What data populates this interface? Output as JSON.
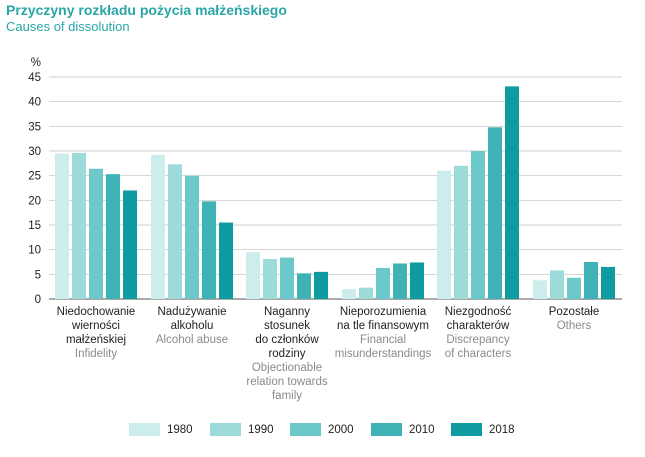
{
  "title": "Przyczyny rozkładu pożycia małżeńskiego",
  "subtitle": "Causes of dissolution",
  "colors": {
    "title": "#2aa6a8",
    "grid": "#bfbfbf",
    "axis": "#555555",
    "series": [
      "#cdecec",
      "#9ddbdb",
      "#6cc9ca",
      "#3eb2b4",
      "#109ba0"
    ]
  },
  "chart_data": {
    "type": "bar",
    "y_unit_label": "%",
    "ylim": [
      0,
      45
    ],
    "yticks": [
      0,
      5,
      10,
      15,
      20,
      25,
      30,
      35,
      40,
      45
    ],
    "grid": true,
    "legend_position": "bottom",
    "categories": [
      {
        "pl": [
          "Niedochowanie",
          "wierności",
          "małżeńskiej"
        ],
        "en": [
          "Infidelity"
        ]
      },
      {
        "pl": [
          "Nadużywanie",
          "alkoholu"
        ],
        "en": [
          "Alcohol abuse"
        ]
      },
      {
        "pl": [
          "Naganny",
          "stosunek",
          "do członków",
          "rodziny"
        ],
        "en": [
          "Objectionable",
          "relation towards",
          "family"
        ]
      },
      {
        "pl": [
          "Nieporozumienia",
          "na tle finansowym"
        ],
        "en": [
          "Financial",
          "misunderstandings"
        ]
      },
      {
        "pl": [
          "Niezgodność",
          "charakterów"
        ],
        "en": [
          "Discrepancy",
          "of characters"
        ]
      },
      {
        "pl": [
          "Pozostałe"
        ],
        "en": [
          "Others"
        ]
      }
    ],
    "series": [
      {
        "name": "1980",
        "values": [
          29.5,
          29.2,
          9.5,
          2.0,
          26.0,
          3.8
        ]
      },
      {
        "name": "1990",
        "values": [
          29.6,
          27.3,
          8.1,
          2.3,
          27.0,
          5.8
        ]
      },
      {
        "name": "2000",
        "values": [
          26.4,
          25.0,
          8.4,
          6.3,
          30.0,
          4.3
        ]
      },
      {
        "name": "2010",
        "values": [
          25.3,
          19.8,
          5.2,
          7.2,
          34.8,
          7.5
        ]
      },
      {
        "name": "2018",
        "values": [
          22.0,
          15.5,
          5.5,
          7.4,
          43.1,
          6.5
        ]
      }
    ]
  }
}
